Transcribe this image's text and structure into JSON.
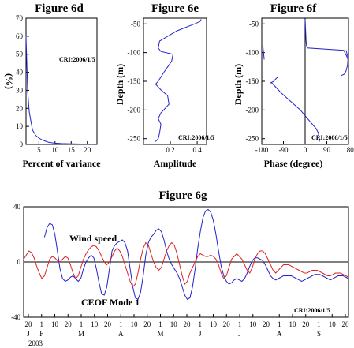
{
  "chart_data": [
    {
      "id": "6d",
      "type": "line",
      "title": "Figure 6d",
      "xlabel": "Percent of variance",
      "ylabel": "(%)",
      "xlim": [
        1,
        23
      ],
      "ylim": [
        0,
        70
      ],
      "xticks": [
        5,
        10,
        15,
        20
      ],
      "yticks": [
        0,
        10,
        20,
        30,
        40,
        50,
        60,
        70
      ],
      "annotation": "CRI:2006/1/5",
      "x": [
        1,
        1.5,
        2,
        3,
        4,
        5,
        6,
        7,
        8,
        9,
        10,
        12,
        15,
        18,
        22
      ],
      "y": [
        60,
        30,
        18,
        8,
        5,
        3.5,
        2.5,
        1.8,
        1.2,
        0.9,
        0.7,
        0.5,
        0.3,
        0.2,
        0.1
      ]
    },
    {
      "id": "6e",
      "type": "line",
      "title": "Figure 6e",
      "xlabel": "Amplitude",
      "ylabel": "Depth (m)",
      "xlim": [
        0,
        0.47
      ],
      "ylim": [
        -260,
        -40
      ],
      "xticks": [
        0.2,
        0.4
      ],
      "yticks": [
        -50,
        -100,
        -150,
        -200,
        -250
      ],
      "annotation": "CRI:2006/1/5",
      "x": [
        0.43,
        0.42,
        0.38,
        0.25,
        0.12,
        0.11,
        0.13,
        0.22,
        0.21,
        0.15,
        0.11,
        0.09,
        0.13,
        0.18,
        0.19,
        0.13,
        0.11,
        0.13,
        0.12,
        0.11,
        0.09
      ],
      "y": [
        -42,
        -46,
        -50,
        -62,
        -80,
        -92,
        -98,
        -103,
        -115,
        -135,
        -150,
        -155,
        -165,
        -175,
        -190,
        -205,
        -215,
        -225,
        -240,
        -250,
        -255
      ]
    },
    {
      "id": "6f",
      "type": "line",
      "title": "Figure 6f",
      "xlabel": "Phase (degree)",
      "ylabel": "Depth (m)",
      "xlim": [
        -180,
        180
      ],
      "ylim": [
        -260,
        -40
      ],
      "xticks": [
        -180,
        -90,
        0,
        90,
        180
      ],
      "yticks": [
        -50,
        -100,
        -150,
        -200,
        -250
      ],
      "annotation": "CRI:2006/1/5",
      "x": [
        0,
        2,
        4,
        6,
        10,
        160,
        165,
        172,
        178,
        -170,
        -175,
        -180,
        170,
        178,
        176,
        170,
        165,
        160,
        150,
        -110,
        -120,
        -130,
        -145,
        -140,
        -100,
        -60,
        -20,
        10,
        30,
        45,
        55,
        60
      ],
      "y": [
        -42,
        -60,
        -80,
        -88,
        -92,
        -96,
        -100,
        -106,
        -112,
        -112,
        -90,
        -89,
        -96,
        -108,
        -122,
        -132,
        -136,
        -138,
        -140,
        -142,
        -145,
        -150,
        -153,
        -152,
        -170,
        -185,
        -200,
        -215,
        -225,
        -232,
        -240,
        -255
      ]
    },
    {
      "id": "6g",
      "type": "line",
      "title": "Figure 6g",
      "ylim": [
        -40,
        40
      ],
      "yticks": [
        -40,
        0,
        40
      ],
      "annotation": "CRI:2006/1/5",
      "x_day_ticks": [
        "20",
        "1",
        "10",
        "20",
        "1",
        "10",
        "20",
        "1",
        "10",
        "20",
        "1",
        "10",
        "20",
        "1",
        "10",
        "20",
        "1",
        "10",
        "20",
        "1",
        "10",
        "20",
        "1",
        "10",
        "20"
      ],
      "month_labels": [
        "J",
        "F",
        "M",
        "A",
        "M",
        "J",
        "J",
        "A",
        "S"
      ],
      "year_label": "2003",
      "series": [
        {
          "name": "Wind speed",
          "color": "#2222cc",
          "x": [
            0,
            2,
            4,
            6,
            8,
            10,
            12,
            14,
            16,
            18,
            20,
            22,
            24,
            26,
            28,
            30,
            32,
            34,
            36,
            38,
            40,
            42,
            44,
            46,
            48,
            50,
            52,
            54,
            56,
            58,
            60,
            62,
            64,
            66,
            68,
            70,
            72,
            74,
            76,
            78,
            80,
            82,
            84,
            86,
            88,
            90,
            92,
            94,
            96,
            98,
            100,
            102,
            104,
            106,
            108,
            110,
            112,
            114,
            116,
            118,
            120,
            122,
            124,
            126,
            128,
            130,
            132,
            134,
            136,
            138,
            140,
            142,
            144,
            146,
            148,
            150,
            152,
            154,
            156,
            158,
            160,
            162,
            164,
            166,
            168,
            170,
            172,
            174,
            176,
            178,
            180,
            182,
            184,
            186,
            188,
            190,
            192,
            194,
            196,
            198,
            200,
            202,
            204,
            206,
            208,
            210,
            212,
            214,
            216,
            218,
            220,
            222,
            224,
            226,
            228,
            230,
            232,
            234,
            236,
            238,
            240,
            242,
            244,
            246,
            248,
            250
          ],
          "y": [
            null,
            null,
            null,
            null,
            null,
            null,
            null,
            null,
            18,
            25,
            28,
            27,
            20,
            8,
            -5,
            -12,
            -14,
            -13,
            -11,
            -10,
            -12,
            -14,
            -12,
            -5,
            0,
            3,
            5,
            3,
            -5,
            -15,
            -23,
            -24,
            -18,
            -5,
            8,
            12,
            14,
            15,
            16,
            14,
            8,
            -5,
            -18,
            -26,
            -27,
            -22,
            -10,
            5,
            14,
            18,
            20,
            23,
            24,
            22,
            16,
            8,
            2,
            -2,
            -5,
            -8,
            -12,
            -18,
            -24,
            -27,
            -26,
            -18,
            -5,
            10,
            22,
            32,
            37,
            38,
            36,
            30,
            20,
            8,
            -3,
            -10,
            -14,
            -16,
            -15,
            -13,
            -12,
            -13,
            -14,
            -12,
            -8,
            -3,
            1,
            3,
            3,
            2,
            1,
            -2,
            -6,
            -10,
            -12,
            -13,
            -12,
            -11,
            -10,
            -10,
            -10,
            -10,
            -11,
            -12,
            -13,
            -14,
            -13,
            -12,
            -11,
            -10,
            -9,
            -9,
            -9,
            -10,
            -11,
            -12,
            -13,
            -12,
            -11,
            -10,
            -10,
            -10,
            -11,
            -12
          ]
        },
        {
          "name": "CEOF Mode 1",
          "color": "#dd2222",
          "x": [
            0,
            2,
            4,
            6,
            8,
            10,
            12,
            14,
            16,
            18,
            20,
            22,
            24,
            26,
            28,
            30,
            32,
            34,
            36,
            38,
            40,
            42,
            44,
            46,
            48,
            50,
            52,
            54,
            56,
            58,
            60,
            62,
            64,
            66,
            68,
            70,
            72,
            74,
            76,
            78,
            80,
            82,
            84,
            86,
            88,
            90,
            92,
            94,
            96,
            98,
            100,
            102,
            104,
            106,
            108,
            110,
            112,
            114,
            116,
            118,
            120,
            122,
            124,
            126,
            128,
            130,
            132,
            134,
            136,
            138,
            140,
            142,
            144,
            146,
            148,
            150,
            152,
            154,
            156,
            158,
            160,
            162,
            164,
            166,
            168,
            170,
            172,
            174,
            176,
            178,
            180,
            182,
            184,
            186,
            188,
            190,
            192,
            194,
            196,
            198,
            200,
            202,
            204,
            206,
            208,
            210,
            212,
            214,
            216,
            218,
            220,
            222,
            224,
            226,
            228,
            230,
            232,
            234,
            236,
            238,
            240,
            242,
            244,
            246,
            248,
            250
          ],
          "y": [
            2,
            5,
            8,
            7,
            3,
            -3,
            -8,
            -12,
            -10,
            -4,
            2,
            4,
            3,
            1,
            0,
            2,
            4,
            3,
            -2,
            -8,
            -12,
            -10,
            -4,
            2,
            6,
            9,
            11,
            12,
            11,
            8,
            4,
            0,
            -2,
            0,
            4,
            8,
            10,
            8,
            4,
            -2,
            -8,
            -14,
            -18,
            -16,
            -8,
            2,
            10,
            14,
            12,
            6,
            0,
            -4,
            -6,
            -4,
            2,
            8,
            12,
            14,
            12,
            6,
            -2,
            -10,
            -16,
            -14,
            -8,
            -4,
            0,
            4,
            6,
            5,
            4,
            4,
            5,
            4,
            2,
            -2,
            -8,
            -12,
            -10,
            -4,
            2,
            4,
            6,
            4,
            2,
            -2,
            -6,
            -8,
            -4,
            2,
            6,
            8,
            8,
            6,
            2,
            -2,
            -6,
            -8,
            -6,
            -4,
            -2,
            -2,
            -2,
            -3,
            -4,
            -5,
            -6,
            -7,
            -8,
            -8,
            -7,
            -6,
            -6,
            -6,
            -7,
            -8,
            -9,
            -10,
            -10,
            -9,
            -8,
            -8,
            -8,
            -9,
            -10,
            -11
          ]
        }
      ]
    }
  ]
}
